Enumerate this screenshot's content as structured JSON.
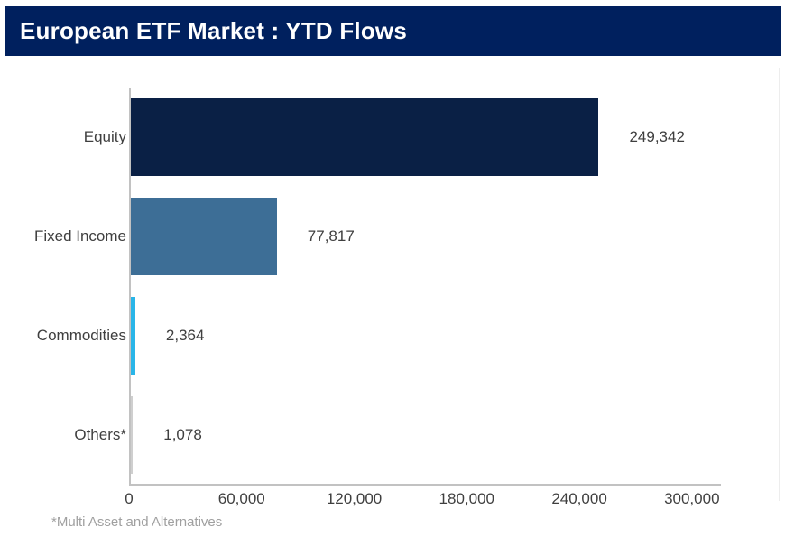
{
  "header": {
    "title": "European ETF Market : YTD Flows"
  },
  "colors": {
    "header_bg": "#00205e",
    "header_text": "#ffffff",
    "axis_line": "#c2c2c2",
    "label_text": "#3f3f3f",
    "footnote_text": "#a0a0a0"
  },
  "chart_data": {
    "type": "bar",
    "orientation": "horizontal",
    "title": "European ETF Market : YTD Flows",
    "categories": [
      "Equity",
      "Fixed Income",
      "Commodities",
      "Others*"
    ],
    "values": [
      249342,
      77817,
      2364,
      1078
    ],
    "value_labels": [
      "249,342",
      "77,817",
      "2,364",
      "1,078"
    ],
    "bar_colors": [
      "#0a2045",
      "#3d6e96",
      "#29b5e8",
      "#cfcfcf"
    ],
    "ticks": [
      0,
      60000,
      120000,
      180000,
      240000,
      300000
    ],
    "tick_labels": [
      "0",
      "60,000",
      "120,000",
      "180,000",
      "240,000",
      "300,000"
    ],
    "xlim": [
      0,
      315000
    ],
    "xlabel": "",
    "ylabel": "",
    "grid": false,
    "legend": false,
    "footnote": "*Multi Asset and Alternatives"
  }
}
